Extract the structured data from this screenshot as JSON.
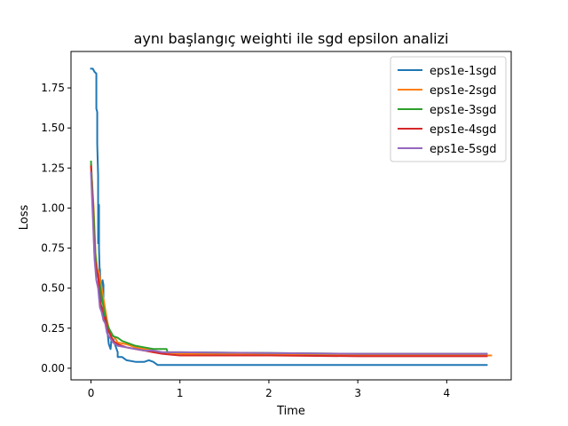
{
  "chart_data": {
    "type": "line",
    "title": "aynı başlangıç weighti ile sgd epsilon analizi",
    "xlabel": "Time",
    "ylabel": "Loss",
    "xlim": [
      -0.225,
      4.725
    ],
    "ylim": [
      -0.0725,
      1.9775
    ],
    "x_ticks": [
      0,
      1,
      2,
      3,
      4
    ],
    "y_ticks": [
      0.0,
      0.25,
      0.5,
      0.75,
      1.0,
      1.25,
      1.5,
      1.75
    ],
    "grid": false,
    "legend_position": "top-right",
    "series": [
      {
        "name": "eps1e-1sgd",
        "color": "#1f77b4",
        "x": [
          0.0,
          0.02,
          0.04,
          0.06,
          0.06,
          0.07,
          0.07,
          0.08,
          0.08,
          0.09,
          0.09,
          0.1,
          0.1,
          0.11,
          0.11,
          0.12,
          0.13,
          0.14,
          0.14,
          0.16,
          0.17,
          0.18,
          0.2,
          0.22,
          0.23,
          0.25,
          0.3,
          0.3,
          0.35,
          0.4,
          0.5,
          0.6,
          0.65,
          0.7,
          0.75,
          1.0,
          2.0,
          3.0,
          4.0,
          4.45
        ],
        "y": [
          1.87,
          1.87,
          1.85,
          1.84,
          1.62,
          1.6,
          1.4,
          1.2,
          0.78,
          1.02,
          0.75,
          0.55,
          0.62,
          0.48,
          0.4,
          0.52,
          0.55,
          0.52,
          0.3,
          0.3,
          0.28,
          0.25,
          0.15,
          0.12,
          0.18,
          0.18,
          0.1,
          0.07,
          0.07,
          0.05,
          0.04,
          0.04,
          0.05,
          0.04,
          0.02,
          0.02,
          0.02,
          0.02,
          0.02,
          0.02
        ]
      },
      {
        "name": "eps1e-2sgd",
        "color": "#ff7f0e",
        "x": [
          0.0,
          0.03,
          0.05,
          0.07,
          0.09,
          0.12,
          0.15,
          0.18,
          0.2,
          0.22,
          0.25,
          0.28,
          0.3,
          0.4,
          0.5,
          0.6,
          0.7,
          0.8,
          0.9,
          1.0,
          2.0,
          3.0,
          4.0,
          4.5
        ],
        "y": [
          1.27,
          1.0,
          0.72,
          0.62,
          0.6,
          0.5,
          0.4,
          0.3,
          0.25,
          0.22,
          0.2,
          0.18,
          0.16,
          0.15,
          0.13,
          0.12,
          0.11,
          0.1,
          0.095,
          0.09,
          0.085,
          0.08,
          0.08,
          0.08
        ]
      },
      {
        "name": "eps1e-3sgd",
        "color": "#2ca02c",
        "x": [
          0.0,
          0.03,
          0.05,
          0.07,
          0.09,
          0.12,
          0.15,
          0.18,
          0.2,
          0.25,
          0.3,
          0.35,
          0.4,
          0.5,
          0.6,
          0.7,
          0.85,
          0.86,
          1.0,
          2.0,
          3.0,
          4.0,
          4.45
        ],
        "y": [
          1.29,
          0.95,
          0.7,
          0.58,
          0.55,
          0.45,
          0.35,
          0.28,
          0.25,
          0.2,
          0.19,
          0.17,
          0.16,
          0.14,
          0.13,
          0.12,
          0.12,
          0.1,
          0.1,
          0.095,
          0.09,
          0.09,
          0.09
        ]
      },
      {
        "name": "eps1e-4sgd",
        "color": "#d62728",
        "x": [
          0.0,
          0.02,
          0.04,
          0.06,
          0.08,
          0.1,
          0.12,
          0.14,
          0.16,
          0.18,
          0.2,
          0.25,
          0.3,
          0.4,
          0.5,
          0.6,
          0.7,
          0.8,
          0.9,
          1.0,
          2.0,
          3.0,
          4.0,
          4.45
        ],
        "y": [
          1.26,
          1.0,
          0.7,
          0.62,
          0.58,
          0.42,
          0.38,
          0.3,
          0.32,
          0.25,
          0.23,
          0.17,
          0.15,
          0.13,
          0.12,
          0.11,
          0.1,
          0.09,
          0.085,
          0.08,
          0.08,
          0.075,
          0.075,
          0.075
        ]
      },
      {
        "name": "eps1e-5sgd",
        "color": "#9467bd",
        "x": [
          0.0,
          0.02,
          0.04,
          0.06,
          0.08,
          0.1,
          0.12,
          0.14,
          0.16,
          0.18,
          0.2,
          0.25,
          0.3,
          0.4,
          0.5,
          0.6,
          0.7,
          0.8,
          1.0,
          2.0,
          3.0,
          4.0,
          4.45
        ],
        "y": [
          1.22,
          0.95,
          0.68,
          0.55,
          0.5,
          0.38,
          0.35,
          0.3,
          0.28,
          0.22,
          0.2,
          0.16,
          0.14,
          0.13,
          0.12,
          0.11,
          0.11,
          0.1,
          0.1,
          0.095,
          0.09,
          0.09,
          0.09
        ]
      }
    ]
  }
}
